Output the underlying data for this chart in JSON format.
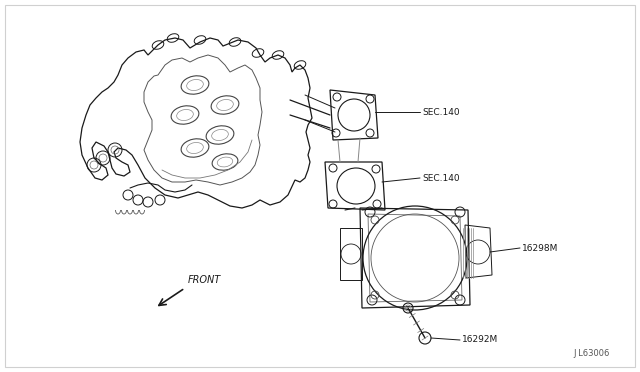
{
  "background_color": "#ffffff",
  "border_color": "#d0d0d0",
  "drawing_color": "#1a1a1a",
  "line_width": 0.8,
  "labels": {
    "sec140_top": "SEC.140",
    "sec140_bot": "SEC.140",
    "part_16298M": "16298M",
    "part_16292M": "16292M",
    "front": "FRONT",
    "ref_code": "J L63006"
  },
  "figsize": [
    6.4,
    3.72
  ],
  "dpi": 100
}
